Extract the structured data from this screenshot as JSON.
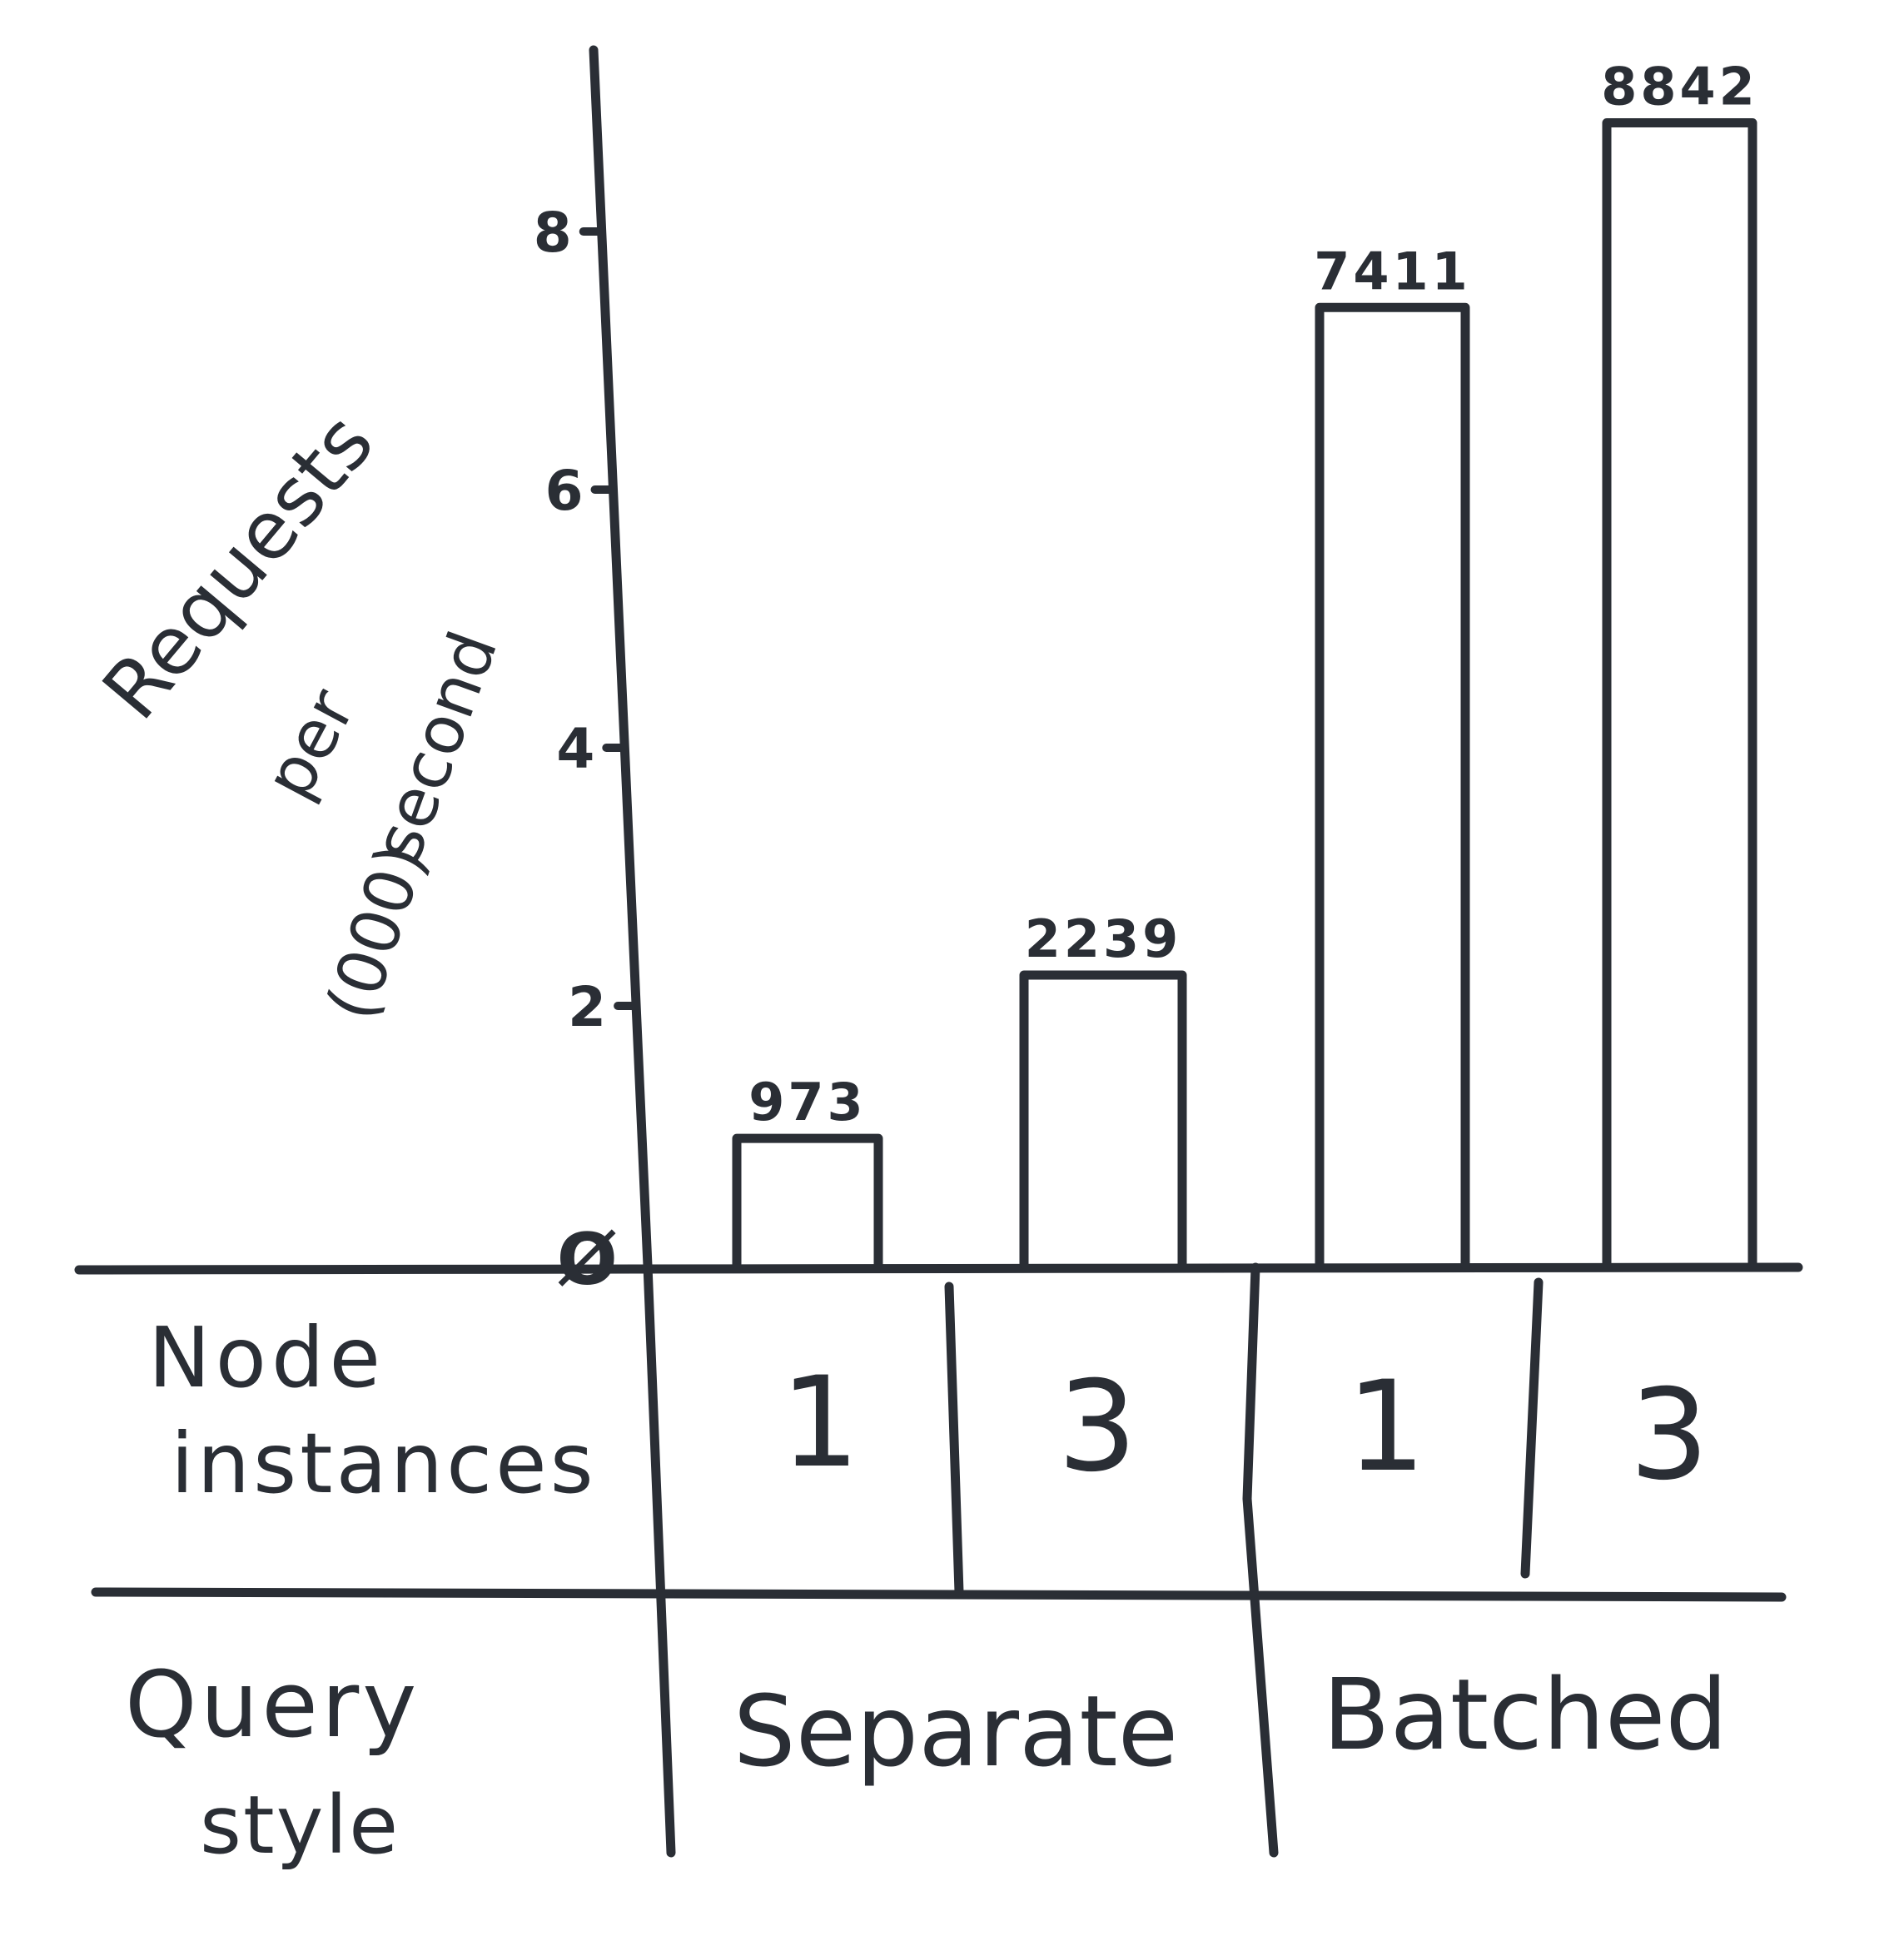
{
  "chart_data": {
    "type": "bar",
    "title": "",
    "ylabel": "Requests per second (000)",
    "ylabel_lines": [
      "Requests",
      "per",
      "second",
      "(000)"
    ],
    "yticks": [
      "Ø",
      "2",
      "4",
      "6",
      "8"
    ],
    "ytick_values": [
      0,
      2,
      4,
      6,
      8
    ],
    "ylim": [
      0,
      9
    ],
    "x_rows": [
      {
        "label": "Node instances",
        "label_lines": [
          "Node",
          "instances"
        ],
        "values": [
          "1",
          "3",
          "1",
          "3"
        ]
      },
      {
        "label": "Query style",
        "label_lines": [
          "Query",
          "style"
        ],
        "values": [
          "Separate",
          "Batched"
        ]
      }
    ],
    "categories": [
      "Separate / 1",
      "Separate / 3",
      "Batched / 1",
      "Batched / 3"
    ],
    "values": [
      973,
      2239,
      7411,
      8842
    ],
    "data_labels": [
      "973",
      "2239",
      "7411",
      "8842"
    ],
    "value_unit": "requests per second",
    "grid": false,
    "legend": "none",
    "colors": {
      "ink": "#2a2e35",
      "background": "#ffffff"
    }
  }
}
